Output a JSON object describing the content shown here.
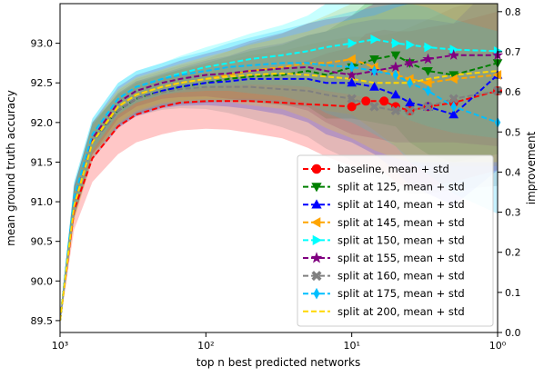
{
  "chart_data": {
    "type": "line",
    "xlabel": "top n best predicted networks",
    "ylabel": "mean ground truth accuracy",
    "y2label": "improvement",
    "x_scale": "log-reversed",
    "xlim": [
      1000,
      1
    ],
    "ylim": [
      89.35,
      93.5
    ],
    "y2lim": [
      0.0,
      0.82
    ],
    "x_ticks": [
      1000,
      100,
      10,
      1
    ],
    "x_tick_labels": [
      "10³",
      "10²",
      "10¹",
      "10⁰"
    ],
    "y_ticks": [
      89.5,
      90.0,
      90.5,
      91.0,
      91.5,
      92.0,
      92.5,
      93.0
    ],
    "y_tick_labels": [
      "89.5",
      "90.0",
      "90.5",
      "91.0",
      "91.5",
      "92.0",
      "92.5",
      "93.0"
    ],
    "y2_ticks": [
      0.0,
      0.1,
      0.2,
      0.3,
      0.4,
      0.5,
      0.6,
      0.7,
      0.8
    ],
    "y2_tick_labels": [
      "0.0",
      "0.1",
      "0.2",
      "0.3",
      "0.4",
      "0.5",
      "0.6",
      "0.7",
      "0.8"
    ],
    "grid": false,
    "legend_position": "lower-right",
    "series": [
      {
        "name": "baseline, mean + std",
        "color": "#ff0000",
        "marker": "circle",
        "x": [
          1000,
          800,
          600,
          400,
          300,
          200,
          150,
          100,
          70,
          50,
          30,
          20,
          15,
          10,
          8,
          6,
          5,
          4,
          3,
          2,
          1
        ],
        "y": [
          89.5,
          90.9,
          91.55,
          91.95,
          92.1,
          92.2,
          92.25,
          92.27,
          92.27,
          92.27,
          92.25,
          92.23,
          92.22,
          92.2,
          92.27,
          92.27,
          92.2,
          92.15,
          92.2,
          92.25,
          92.4
        ],
        "std": [
          0.05,
          0.25,
          0.3,
          0.35,
          0.35,
          0.35,
          0.35,
          0.35,
          0.36,
          0.4,
          0.45,
          0.55,
          0.65,
          0.75,
          0.85,
          0.9,
          0.95,
          1.0,
          1.0,
          1.0,
          1.0
        ]
      },
      {
        "name": "split at 125, mean + std",
        "color": "#008000",
        "marker": "triangle-down",
        "x": [
          1000,
          800,
          600,
          400,
          300,
          200,
          150,
          100,
          70,
          50,
          30,
          20,
          15,
          10,
          7,
          5,
          4,
          3,
          2,
          1
        ],
        "y": [
          89.5,
          91.0,
          91.8,
          92.15,
          92.3,
          92.4,
          92.45,
          92.5,
          92.55,
          92.58,
          92.6,
          92.65,
          92.6,
          92.7,
          92.8,
          92.85,
          92.75,
          92.65,
          92.6,
          92.75
        ],
        "std": [
          0.05,
          0.2,
          0.2,
          0.2,
          0.2,
          0.2,
          0.22,
          0.25,
          0.28,
          0.32,
          0.38,
          0.45,
          0.55,
          0.65,
          0.8,
          0.9,
          1.0,
          1.05,
          1.1,
          1.15
        ]
      },
      {
        "name": "split at 140, mean + std",
        "color": "#0000ff",
        "marker": "triangle-up",
        "x": [
          1000,
          800,
          600,
          400,
          300,
          200,
          150,
          100,
          70,
          50,
          30,
          20,
          15,
          10,
          7,
          5,
          4,
          3,
          2,
          1
        ],
        "y": [
          89.5,
          91.0,
          91.75,
          92.15,
          92.3,
          92.4,
          92.45,
          92.5,
          92.52,
          92.55,
          92.55,
          92.55,
          92.5,
          92.5,
          92.45,
          92.35,
          92.25,
          92.2,
          92.1,
          92.6
        ],
        "std": [
          0.05,
          0.2,
          0.22,
          0.22,
          0.22,
          0.22,
          0.24,
          0.28,
          0.32,
          0.38,
          0.45,
          0.55,
          0.65,
          0.75,
          0.85,
          0.95,
          1.05,
          1.1,
          1.15,
          1.2
        ]
      },
      {
        "name": "split at 145, mean + std",
        "color": "#ffa500",
        "marker": "triangle-left",
        "x": [
          1000,
          800,
          600,
          400,
          300,
          200,
          150,
          100,
          70,
          50,
          30,
          20,
          15,
          10,
          7,
          5,
          4,
          3,
          2,
          1
        ],
        "y": [
          89.5,
          91.0,
          91.8,
          92.2,
          92.35,
          92.45,
          92.5,
          92.55,
          92.6,
          92.65,
          92.7,
          92.75,
          92.75,
          92.8,
          92.7,
          92.6,
          92.55,
          92.5,
          92.55,
          92.6
        ],
        "std": [
          0.05,
          0.2,
          0.2,
          0.2,
          0.2,
          0.2,
          0.22,
          0.25,
          0.3,
          0.35,
          0.42,
          0.5,
          0.6,
          0.7,
          0.8,
          0.9,
          1.0,
          1.05,
          1.1,
          1.15
        ]
      },
      {
        "name": "split at 150, mean + std",
        "color": "#00ffff",
        "marker": "triangle-right",
        "x": [
          1000,
          800,
          600,
          400,
          300,
          200,
          150,
          100,
          70,
          50,
          30,
          20,
          15,
          10,
          7,
          5,
          4,
          3,
          2,
          1
        ],
        "y": [
          89.5,
          91.05,
          91.85,
          92.3,
          92.45,
          92.55,
          92.62,
          92.7,
          92.75,
          92.8,
          92.85,
          92.9,
          92.95,
          93.0,
          93.05,
          93.0,
          92.98,
          92.95,
          92.92,
          92.9
        ],
        "std": [
          0.05,
          0.2,
          0.2,
          0.2,
          0.2,
          0.2,
          0.22,
          0.25,
          0.28,
          0.32,
          0.38,
          0.45,
          0.55,
          0.65,
          0.75,
          0.85,
          0.95,
          1.0,
          1.05,
          1.1
        ]
      },
      {
        "name": "split at 155, mean + std",
        "color": "#800080",
        "marker": "star",
        "x": [
          1000,
          800,
          600,
          400,
          300,
          200,
          150,
          100,
          70,
          50,
          30,
          20,
          15,
          10,
          7,
          5,
          4,
          3,
          2,
          1
        ],
        "y": [
          89.5,
          91.0,
          91.8,
          92.25,
          92.4,
          92.5,
          92.55,
          92.6,
          92.62,
          92.65,
          92.68,
          92.7,
          92.65,
          92.6,
          92.65,
          92.7,
          92.75,
          92.8,
          92.85,
          92.85
        ],
        "std": [
          0.05,
          0.2,
          0.2,
          0.2,
          0.2,
          0.2,
          0.23,
          0.27,
          0.32,
          0.38,
          0.45,
          0.55,
          0.65,
          0.75,
          0.85,
          0.95,
          1.0,
          1.05,
          1.1,
          1.15
        ]
      },
      {
        "name": "split at 160, mean + std",
        "color": "#808080",
        "marker": "x-filled",
        "x": [
          1000,
          800,
          600,
          400,
          300,
          200,
          150,
          100,
          70,
          50,
          30,
          20,
          15,
          10,
          7,
          5,
          4,
          3,
          2,
          1
        ],
        "y": [
          89.5,
          91.0,
          91.75,
          92.15,
          92.3,
          92.38,
          92.42,
          92.45,
          92.45,
          92.45,
          92.42,
          92.4,
          92.35,
          92.3,
          92.2,
          92.15,
          92.15,
          92.2,
          92.3,
          92.4
        ],
        "std": [
          0.05,
          0.2,
          0.22,
          0.22,
          0.22,
          0.22,
          0.24,
          0.28,
          0.33,
          0.4,
          0.48,
          0.58,
          0.68,
          0.78,
          0.88,
          0.98,
          1.05,
          1.1,
          1.15,
          1.2
        ]
      },
      {
        "name": "split at 175, mean + std",
        "color": "#00bfff",
        "marker": "thin-diamond",
        "x": [
          1000,
          800,
          600,
          400,
          300,
          200,
          150,
          100,
          70,
          50,
          30,
          20,
          15,
          10,
          7,
          5,
          4,
          3,
          2,
          1
        ],
        "y": [
          89.5,
          91.05,
          91.85,
          92.3,
          92.45,
          92.55,
          92.6,
          92.65,
          92.7,
          92.72,
          92.75,
          92.75,
          92.72,
          92.7,
          92.65,
          92.6,
          92.5,
          92.4,
          92.2,
          92.0
        ],
        "std": [
          0.05,
          0.2,
          0.2,
          0.2,
          0.2,
          0.2,
          0.22,
          0.25,
          0.3,
          0.35,
          0.42,
          0.5,
          0.6,
          0.7,
          0.8,
          0.9,
          1.0,
          1.05,
          1.1,
          1.15
        ]
      },
      {
        "name": "split at 200, mean + std",
        "color": "#ffd700",
        "marker": "none",
        "x": [
          1000,
          800,
          600,
          400,
          300,
          200,
          150,
          100,
          70,
          50,
          30,
          20,
          15,
          10,
          7,
          5,
          4,
          3,
          2,
          1
        ],
        "y": [
          89.5,
          90.95,
          91.75,
          92.2,
          92.35,
          92.45,
          92.5,
          92.55,
          92.58,
          92.6,
          92.62,
          92.6,
          92.58,
          92.55,
          92.5,
          92.5,
          92.5,
          92.55,
          92.6,
          92.65
        ],
        "std": [
          0.05,
          0.2,
          0.22,
          0.22,
          0.22,
          0.22,
          0.24,
          0.28,
          0.32,
          0.38,
          0.45,
          0.55,
          0.65,
          0.75,
          0.85,
          0.95,
          1.0,
          1.05,
          1.1,
          1.15
        ]
      }
    ]
  }
}
